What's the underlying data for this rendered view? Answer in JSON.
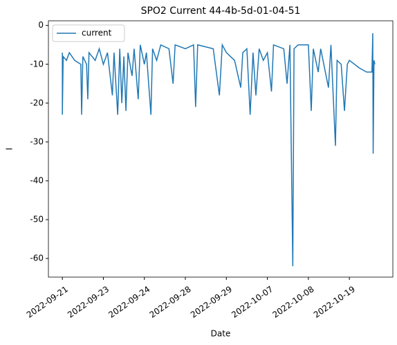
{
  "chart_data": {
    "type": "line",
    "title": "SPO2 Current 44-4b-5d-01-04-51",
    "x_label": "Date",
    "y_label": "I",
    "legend": "upper left",
    "grid": false,
    "xlim": [
      -0.34,
      8.06
    ],
    "xticks": [
      {
        "value": 0,
        "label": "2022-09-21"
      },
      {
        "value": 1,
        "label": "2022-09-23"
      },
      {
        "value": 2,
        "label": "2022-09-24"
      },
      {
        "value": 3,
        "label": "2022-09-28"
      },
      {
        "value": 4,
        "label": "2022-09-29"
      },
      {
        "value": 5,
        "label": "2022-10-07"
      },
      {
        "value": 6,
        "label": "2022-10-08"
      },
      {
        "value": 7,
        "label": "2022-10-19"
      }
    ],
    "ylim": [
      -64.8,
      1.2
    ],
    "yticks": [
      0,
      -10,
      -20,
      -30,
      -40,
      -50,
      -60
    ],
    "x": [
      0,
      0,
      0.02,
      0.1,
      0.17,
      0.3,
      0.45,
      0.47,
      0.5,
      0.59,
      0.62,
      0.65,
      0.8,
      0.9,
      1.0,
      1.1,
      1.22,
      1.26,
      1.35,
      1.4,
      1.45,
      1.5,
      1.55,
      1.6,
      1.7,
      1.75,
      1.85,
      1.9,
      2.0,
      2.05,
      2.16,
      2.2,
      2.3,
      2.4,
      2.6,
      2.7,
      2.75,
      3.0,
      3.2,
      3.25,
      3.3,
      3.68,
      3.83,
      3.9,
      4.0,
      4.2,
      4.35,
      4.4,
      4.5,
      4.58,
      4.65,
      4.72,
      4.8,
      4.9,
      5.0,
      5.1,
      5.15,
      5.4,
      5.48,
      5.55,
      5.62,
      5.65,
      5.75,
      6.0,
      6.07,
      6.12,
      6.24,
      6.3,
      6.49,
      6.55,
      6.66,
      6.7,
      6.8,
      6.88,
      6.95,
      7.0,
      7.25,
      7.42,
      7.55,
      7.57,
      7.58,
      7.6,
      7.62
    ],
    "series": [
      {
        "name": "current",
        "color": "#1f77b4",
        "values": [
          -7,
          -23,
          -8,
          -9,
          -7,
          -9,
          -10,
          -23,
          -8,
          -10,
          -19,
          -7,
          -9,
          -6,
          -10,
          -7,
          -18,
          -7,
          -23,
          -6,
          -20,
          -8,
          -22,
          -7,
          -13,
          -6,
          -19,
          -5,
          -10,
          -7,
          -23,
          -6,
          -9,
          -5,
          -6,
          -15,
          -5,
          -6,
          -5,
          -21,
          -5,
          -6,
          -18,
          -5,
          -7,
          -9,
          -16,
          -7,
          -6,
          -23,
          -7,
          -18,
          -6,
          -9,
          -7,
          -17,
          -5,
          -6,
          -15,
          -5,
          -62,
          -6,
          -5,
          -5,
          -22,
          -6,
          -12,
          -6,
          -16,
          -5,
          -31,
          -9,
          -10,
          -22,
          -10,
          -9,
          -11,
          -12,
          -12,
          -2,
          -33,
          -9,
          -10
        ]
      }
    ]
  }
}
